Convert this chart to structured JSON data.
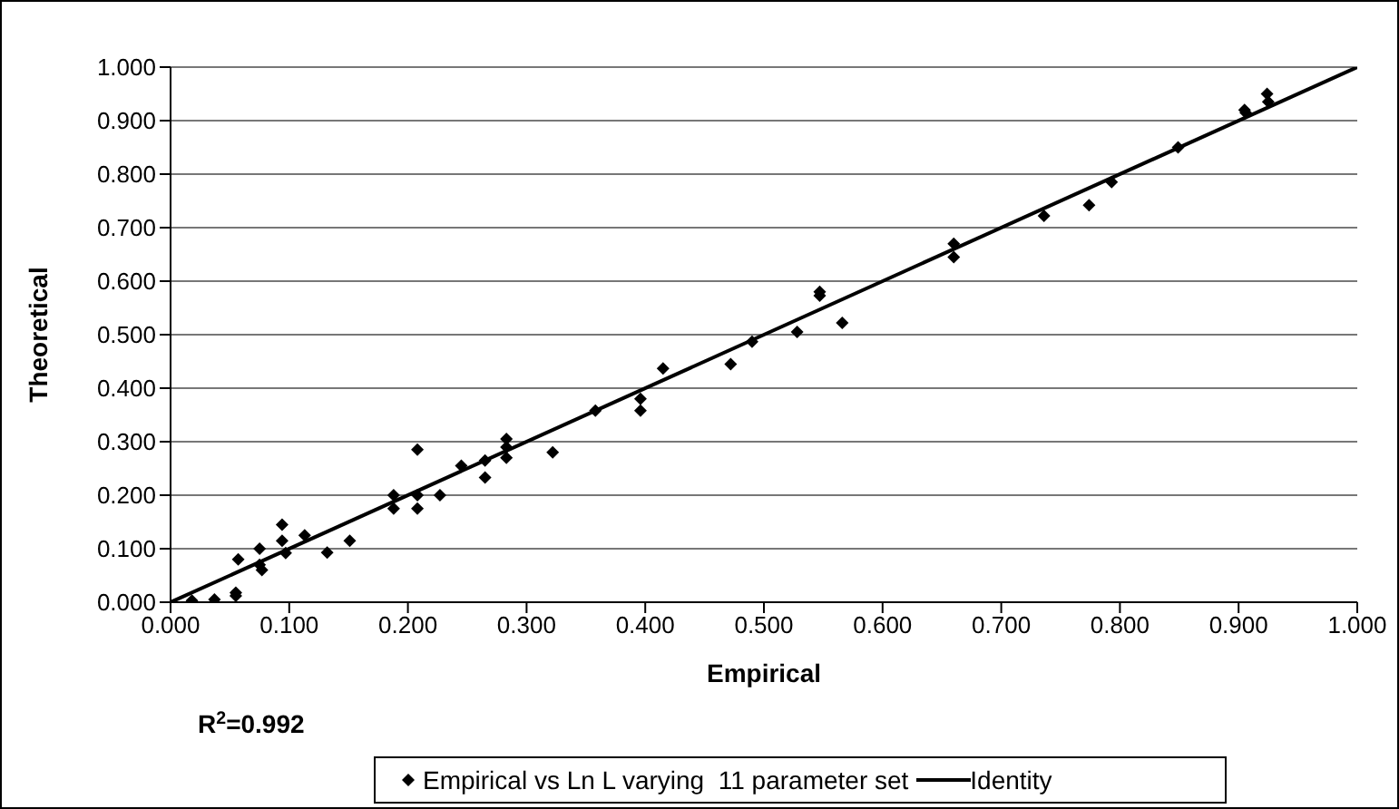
{
  "chart_data": {
    "type": "scatter",
    "xlabel": "Empirical",
    "ylabel": "Theoretical",
    "xlim": [
      0,
      1
    ],
    "ylim": [
      0,
      1
    ],
    "xticks": [
      {
        "value": 0,
        "label": "0.000"
      },
      {
        "value": 0.1,
        "label": "0.100"
      },
      {
        "value": 0.2,
        "label": "0.200"
      },
      {
        "value": 0.3,
        "label": "0.300"
      },
      {
        "value": 0.4,
        "label": "0.400"
      },
      {
        "value": 0.5,
        "label": "0.500"
      },
      {
        "value": 0.6,
        "label": "0.600"
      },
      {
        "value": 0.7,
        "label": "0.700"
      },
      {
        "value": 0.8,
        "label": "0.800"
      },
      {
        "value": 0.9,
        "label": "0.900"
      },
      {
        "value": 1,
        "label": "1.000"
      }
    ],
    "yticks": [
      {
        "value": 0,
        "label": "0.000"
      },
      {
        "value": 0.1,
        "label": "0.100"
      },
      {
        "value": 0.2,
        "label": "0.200"
      },
      {
        "value": 0.3,
        "label": "0.300"
      },
      {
        "value": 0.4,
        "label": "0.400"
      },
      {
        "value": 0.5,
        "label": "0.500"
      },
      {
        "value": 0.6,
        "label": "0.600"
      },
      {
        "value": 0.7,
        "label": "0.700"
      },
      {
        "value": 0.8,
        "label": "0.800"
      },
      {
        "value": 0.9,
        "label": "0.900"
      },
      {
        "value": 1,
        "label": "1.000"
      }
    ],
    "grid": "y",
    "legend": "bottom",
    "annotations": [
      "R$^{2}$=0.992"
    ],
    "series": [
      {
        "name": "Empirical vs Ln L varying  11 parameter set",
        "marker": "diamond",
        "color": "#000000",
        "x": [
          0.018,
          0.037,
          0.055,
          0.055,
          0.057,
          0.075,
          0.075,
          0.077,
          0.094,
          0.094,
          0.097,
          0.113,
          0.132,
          0.151,
          0.188,
          0.188,
          0.208,
          0.208,
          0.208,
          0.227,
          0.245,
          0.265,
          0.265,
          0.283,
          0.283,
          0.283,
          0.322,
          0.358,
          0.396,
          0.396,
          0.415,
          0.472,
          0.49,
          0.528,
          0.547,
          0.547,
          0.566,
          0.66,
          0.66,
          0.736,
          0.774,
          0.793,
          0.849,
          0.905,
          0.906,
          0.924,
          0.925
        ],
        "values": [
          0.003,
          0.005,
          0.012,
          0.018,
          0.08,
          0.1,
          0.07,
          0.06,
          0.145,
          0.115,
          0.092,
          0.125,
          0.093,
          0.115,
          0.2,
          0.175,
          0.285,
          0.2,
          0.175,
          0.2,
          0.255,
          0.265,
          0.233,
          0.305,
          0.29,
          0.27,
          0.28,
          0.358,
          0.38,
          0.358,
          0.437,
          0.445,
          0.487,
          0.505,
          0.58,
          0.573,
          0.522,
          0.67,
          0.645,
          0.722,
          0.742,
          0.785,
          0.85,
          0.92,
          0.915,
          0.95,
          0.935
        ]
      },
      {
        "name": "Identity",
        "type": "line",
        "marker": "none",
        "line_style": "solid",
        "color": "#000000",
        "x": [
          0,
          1
        ],
        "values": [
          0,
          1
        ]
      }
    ]
  }
}
